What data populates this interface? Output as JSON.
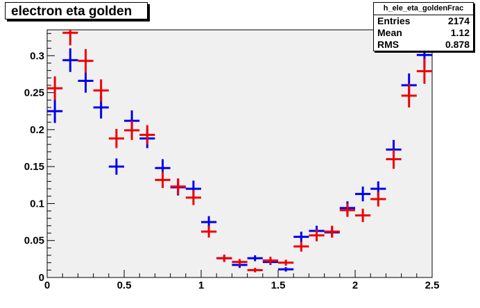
{
  "title": "electron eta golden",
  "stats": {
    "name": "h_ele_eta_goldenFrac",
    "rows": [
      {
        "label": "Entries",
        "value": "2174"
      },
      {
        "label": "Mean",
        "value": "1.12"
      },
      {
        "label": "RMS",
        "value": "0.878"
      }
    ]
  },
  "colors": {
    "frame_bg": "#f0f0f0",
    "series_blue": "#0000ee",
    "series_red": "#ee0000"
  },
  "chart_data": {
    "type": "scatter",
    "title": "electron eta golden",
    "xlim": [
      0,
      2.5
    ],
    "ylim": [
      0,
      0.335
    ],
    "x_ticks": [
      "0",
      "0.5",
      "1",
      "1.5",
      "2",
      "2.5"
    ],
    "x_tick_values": [
      0,
      0.5,
      1,
      1.5,
      2,
      2.5
    ],
    "y_ticks": [
      "0",
      "0.05",
      "0.1",
      "0.15",
      "0.2",
      "0.25",
      "0.3"
    ],
    "y_tick_values": [
      0,
      0.05,
      0.1,
      0.15,
      0.2,
      0.25,
      0.3
    ],
    "bin_width": 0.1,
    "x": [
      0.05,
      0.15,
      0.25,
      0.35,
      0.45,
      0.55,
      0.65,
      0.75,
      0.85,
      0.95,
      1.05,
      1.15,
      1.25,
      1.35,
      1.45,
      1.55,
      1.65,
      1.75,
      1.85,
      1.95,
      2.05,
      2.15,
      2.25,
      2.35,
      2.45
    ],
    "series": [
      {
        "color": "#0000ee",
        "values": [
          0.225,
          0.294,
          0.266,
          0.23,
          0.15,
          0.212,
          0.188,
          0.148,
          0.122,
          0.12,
          0.075,
          0.026,
          0.017,
          0.026,
          0.021,
          0.011,
          0.055,
          0.063,
          0.061,
          0.094,
          0.113,
          0.12,
          0.173,
          0.26,
          0.301
        ],
        "errors": [
          0.016,
          0.016,
          0.016,
          0.015,
          0.011,
          0.014,
          0.013,
          0.012,
          0.011,
          0.011,
          0.008,
          0.004,
          0.004,
          0.004,
          0.004,
          0.003,
          0.007,
          0.007,
          0.007,
          0.009,
          0.01,
          0.01,
          0.013,
          0.016,
          0.018
        ]
      },
      {
        "color": "#ee0000",
        "values": [
          0.256,
          0.331,
          0.293,
          0.253,
          0.188,
          0.199,
          0.193,
          0.132,
          0.123,
          0.108,
          0.062,
          0.026,
          0.021,
          0.01,
          0.023,
          0.02,
          0.042,
          0.057,
          0.062,
          0.091,
          0.084,
          0.106,
          0.16,
          0.246,
          0.279
        ],
        "errors": [
          0.016,
          0.017,
          0.016,
          0.015,
          0.013,
          0.013,
          0.013,
          0.011,
          0.011,
          0.01,
          0.008,
          0.005,
          0.004,
          0.003,
          0.005,
          0.004,
          0.007,
          0.008,
          0.008,
          0.009,
          0.009,
          0.01,
          0.013,
          0.016,
          0.017
        ]
      }
    ]
  }
}
